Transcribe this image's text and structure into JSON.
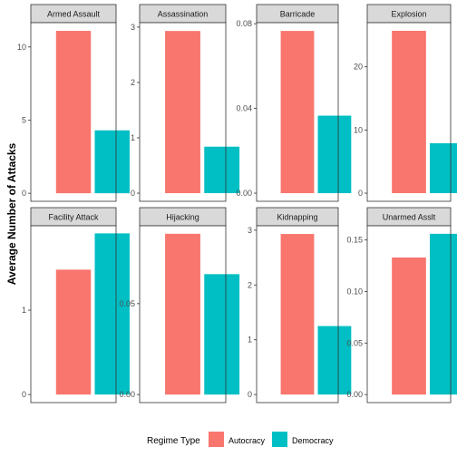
{
  "chart_data": {
    "type": "bar",
    "ylabel": "Average Number of Attacks",
    "categories": [
      "Autocracy",
      "Democracy"
    ],
    "colors": {
      "Autocracy": "#F8766D",
      "Democracy": "#00BFC4"
    },
    "legend": {
      "title": "Regime Type",
      "entries": [
        "Autocracy",
        "Democracy"
      ],
      "position": "bottom"
    },
    "grid": false,
    "panels": [
      {
        "title": "Armed Assault",
        "values": [
          11.1,
          4.3
        ],
        "ylim": [
          -0.55,
          11.66
        ],
        "ticks": [
          0,
          5,
          10
        ],
        "tick_labels": [
          "0",
          "5",
          "10"
        ]
      },
      {
        "title": "Assassination",
        "values": [
          2.93,
          0.84
        ],
        "ylim": [
          -0.147,
          3.08
        ],
        "ticks": [
          0,
          1,
          2,
          3
        ],
        "tick_labels": [
          "0",
          "1",
          "2",
          "3"
        ]
      },
      {
        "title": "Barricade",
        "values": [
          0.0766,
          0.0366
        ],
        "ylim": [
          -0.00384,
          0.0805
        ],
        "ticks": [
          0,
          0.04,
          0.08
        ],
        "tick_labels": [
          "0.00",
          "0.04",
          "0.08"
        ]
      },
      {
        "title": "Explosion",
        "values": [
          25.7,
          7.9
        ],
        "ylim": [
          -1.29,
          26.99
        ],
        "ticks": [
          0,
          10,
          20
        ],
        "tick_labels": [
          "0",
          "10",
          "20"
        ]
      },
      {
        "title": "Facility Attack",
        "values": [
          1.48,
          1.91
        ],
        "ylim": [
          -0.0955,
          2.0
        ],
        "ticks": [
          0,
          1
        ],
        "tick_labels": [
          "0",
          "1"
        ]
      },
      {
        "title": "Hijacking",
        "values": [
          0.0884,
          0.0662
        ],
        "ylim": [
          -0.00442,
          0.0928
        ],
        "ticks": [
          0,
          0.05
        ],
        "tick_labels": [
          "0.00",
          "0.05"
        ]
      },
      {
        "title": "Kidnapping",
        "values": [
          2.93,
          1.25
        ],
        "ylim": [
          -0.147,
          3.08
        ],
        "ticks": [
          0,
          1,
          2,
          3
        ],
        "tick_labels": [
          "0",
          "1",
          "2",
          "3"
        ]
      },
      {
        "title": "Unarmed Asslt",
        "values": [
          0.133,
          0.156
        ],
        "ylim": [
          -0.0078,
          0.1638
        ],
        "ticks": [
          0,
          0.05,
          0.1,
          0.15
        ],
        "tick_labels": [
          "0.00",
          "0.05",
          "0.10",
          "0.15"
        ]
      }
    ]
  }
}
